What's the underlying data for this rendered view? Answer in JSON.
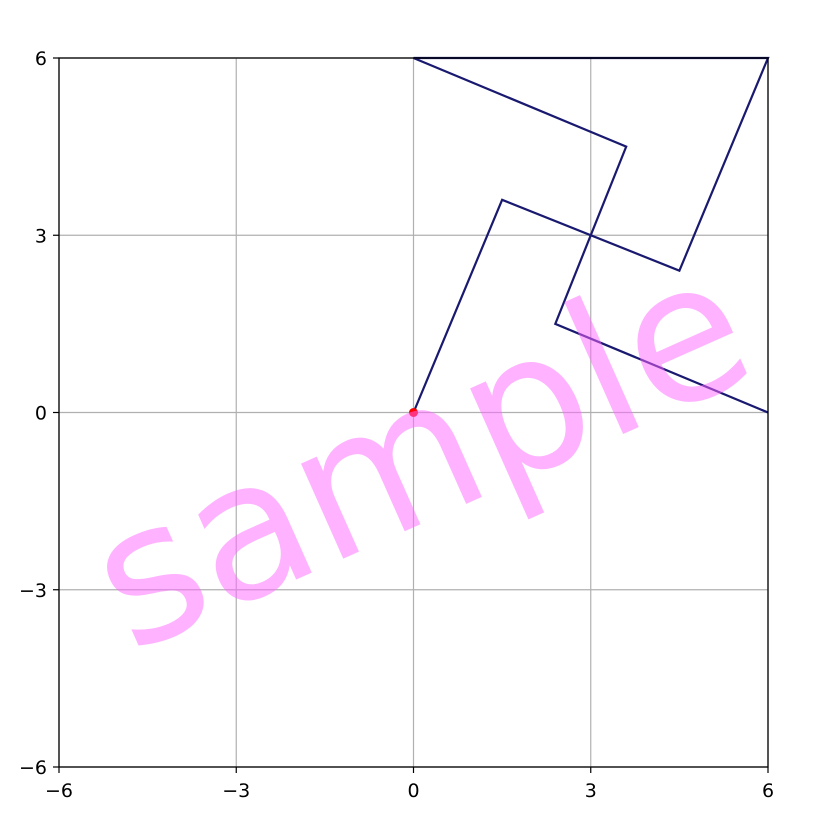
{
  "chart_data": {
    "type": "line",
    "title": "",
    "xlabel": "",
    "ylabel": "",
    "xlim": [
      -6,
      6
    ],
    "ylim": [
      -6,
      6
    ],
    "xticks": [
      -6,
      -3,
      0,
      3,
      6
    ],
    "yticks": [
      -6,
      -3,
      0,
      3,
      6
    ],
    "xtick_labels": [
      "−6",
      "−3",
      "0",
      "3",
      "6"
    ],
    "ytick_labels": [
      "−6",
      "−3",
      "0",
      "3",
      "6"
    ],
    "grid": true,
    "series": [
      {
        "color": "#191970",
        "points": [
          [
            0,
            0
          ],
          [
            1.5,
            3.6
          ],
          [
            4.5,
            2.4
          ],
          [
            6,
            6
          ],
          [
            0,
            6
          ],
          [
            3.6,
            4.5
          ],
          [
            2.4,
            1.5
          ],
          [
            6,
            0
          ]
        ]
      }
    ],
    "highlight_point": {
      "x": 0,
      "y": 0,
      "color": "#ff0000"
    },
    "watermark": {
      "text": "sample",
      "color": "#ff66ff"
    }
  }
}
